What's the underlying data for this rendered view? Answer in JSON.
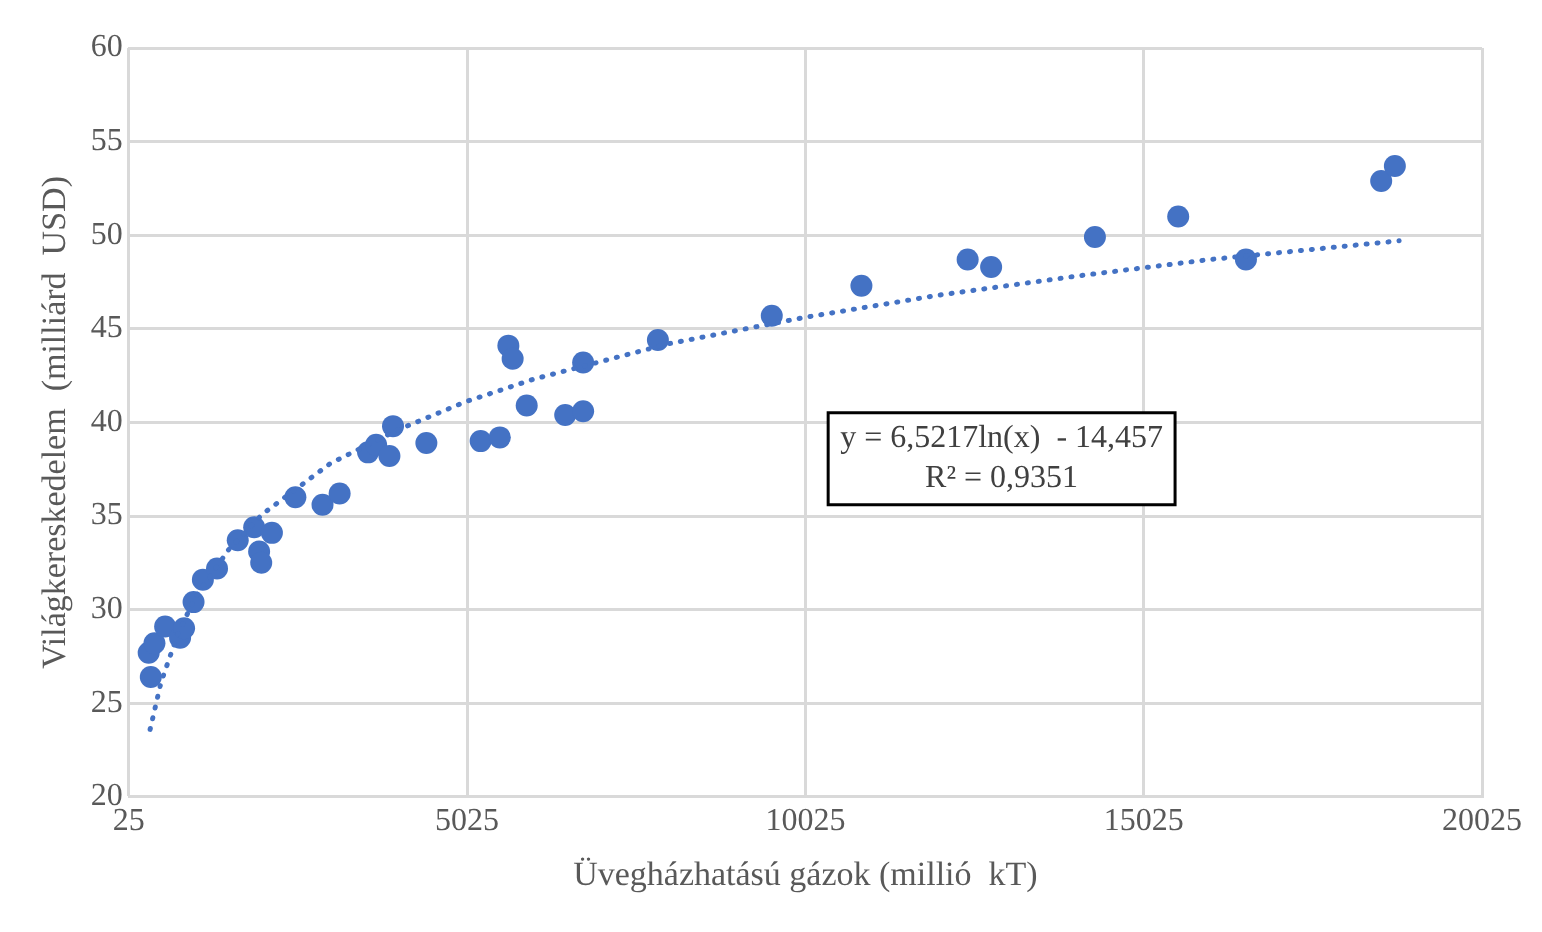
{
  "chart_data": {
    "type": "scatter",
    "xlabel": "Üvegházhatású gázok (millió  kT)",
    "ylabel": "Világkereskedelem  (milliárd  USD)",
    "xlim": [
      25,
      20025
    ],
    "xticks": [
      25,
      5025,
      10025,
      15025,
      20025
    ],
    "ylim": [
      20,
      60
    ],
    "yticks": [
      20,
      25,
      30,
      35,
      40,
      45,
      50,
      55,
      60
    ],
    "grid": true,
    "legend": false,
    "marker": "circle",
    "annotations": [
      "y = 6,5217ln(x)  - 14,457\nR² = 0,9351"
    ],
    "series": [
      {
        "type": "scatter",
        "color": "#4472c4",
        "x": [
          319,
          404,
          350,
          562,
          783,
          842,
          982,
          1120,
          1329,
          1635,
          1878,
          2140,
          1951,
          1982,
          2487,
          2888,
          3141,
          3561,
          3680,
          3930,
          3877,
          4423,
          5225,
          5509,
          5906,
          5635,
          5698,
          6475,
          6740,
          6740,
          7845,
          9528,
          10853,
          12423,
          12770,
          14304,
          15535,
          16536,
          18535,
          18737
        ],
        "values": [
          27.7,
          28.2,
          26.4,
          29.1,
          28.5,
          29.0,
          30.4,
          31.6,
          32.2,
          33.7,
          34.4,
          34.1,
          33.1,
          32.5,
          36.0,
          35.6,
          36.2,
          38.4,
          38.8,
          39.8,
          38.2,
          38.9,
          39.0,
          39.2,
          40.9,
          44.1,
          43.4,
          40.4,
          40.6,
          43.2,
          44.4,
          45.7,
          47.3,
          48.7,
          48.3,
          49.9,
          51.0,
          48.7,
          52.9,
          53.7
        ]
      },
      {
        "type": "line",
        "color": "#4472c4",
        "line_style": "dotted",
        "marker": "none",
        "x": [
          340,
          500,
          750,
          1000,
          1500,
          2000,
          3000,
          4000,
          5000,
          6000,
          8000,
          10000,
          12000,
          14000,
          16000,
          18800
        ],
        "values": [
          23.6,
          26.1,
          28.7,
          30.6,
          33.2,
          35.1,
          37.8,
          39.6,
          41.1,
          42.3,
          44.2,
          45.6,
          46.8,
          47.8,
          48.7,
          49.7
        ]
      }
    ]
  }
}
